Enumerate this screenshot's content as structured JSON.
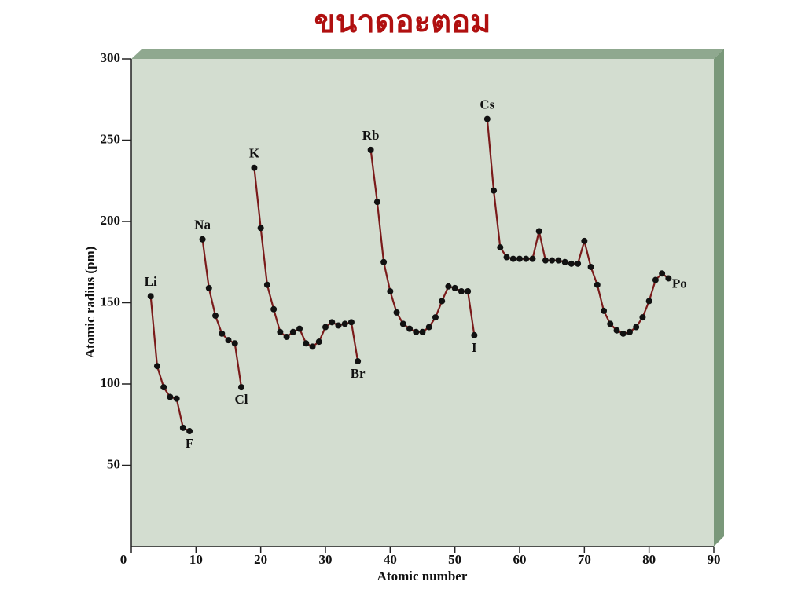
{
  "chart_data": {
    "type": "line",
    "title": "ขนาดอะตอม",
    "xlabel": "Atomic number",
    "ylabel": "Atomic radius (pm)",
    "xlim": [
      0,
      90
    ],
    "xticks": [
      0,
      10,
      20,
      30,
      40,
      50,
      60,
      70,
      80,
      90
    ],
    "ylim": [
      0,
      300
    ],
    "yticks": [
      50,
      100,
      150,
      200,
      250,
      300
    ],
    "x": [
      3,
      4,
      5,
      6,
      7,
      8,
      9,
      10,
      11,
      12,
      13,
      14,
      15,
      16,
      17,
      18,
      19,
      20,
      21,
      22,
      23,
      24,
      25,
      26,
      27,
      28,
      29,
      30,
      31,
      32,
      33,
      34,
      35,
      36,
      37,
      38,
      39,
      40,
      41,
      42,
      43,
      44,
      45,
      46,
      47,
      48,
      49,
      50,
      51,
      52,
      53,
      54,
      55,
      56,
      57,
      58,
      59,
      60,
      61,
      62,
      63,
      64,
      65,
      66,
      67,
      68,
      69,
      70,
      71,
      72,
      73,
      74,
      75,
      76,
      77,
      78,
      79,
      80,
      81,
      82,
      83
    ],
    "series": [
      {
        "color": "#7a1a1a",
        "values": [
          154,
          111,
          98,
          92,
          91,
          73,
          71,
          null,
          189,
          159,
          142,
          131,
          127,
          125,
          98,
          null,
          233,
          196,
          161,
          146,
          132,
          129,
          132,
          134,
          125,
          123,
          126,
          135,
          138,
          136,
          137,
          138,
          114,
          null,
          244,
          212,
          175,
          157,
          144,
          137,
          134,
          132,
          132,
          135,
          141,
          151,
          160,
          159,
          157,
          157,
          130,
          null,
          263,
          219,
          184,
          178,
          177,
          177,
          177,
          177,
          194,
          176,
          176,
          176,
          175,
          174,
          174,
          188,
          172,
          161,
          145,
          137,
          133,
          131,
          132,
          135,
          141,
          151,
          164,
          168,
          165
        ]
      }
    ],
    "annotations": [
      {
        "text": "Li",
        "x": 3
      },
      {
        "text": "F",
        "x": 9
      },
      {
        "text": "Na",
        "x": 11
      },
      {
        "text": "Cl",
        "x": 17
      },
      {
        "text": "K",
        "x": 19
      },
      {
        "text": "Br",
        "x": 35
      },
      {
        "text": "Rb",
        "x": 37
      },
      {
        "text": "I",
        "x": 53
      },
      {
        "text": "Cs",
        "x": 55
      },
      {
        "text": "Po",
        "x": 83
      }
    ]
  }
}
